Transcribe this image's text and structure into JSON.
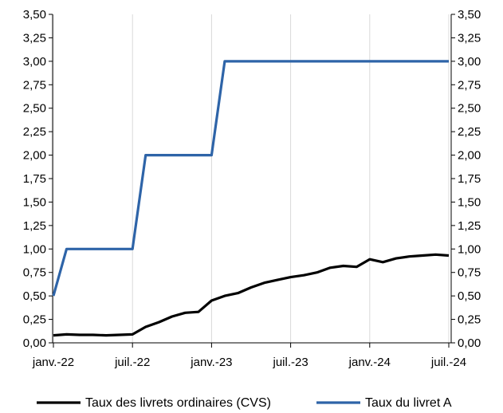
{
  "chart_data": {
    "type": "line",
    "title": "",
    "xlabel": "",
    "ylabel": "",
    "ylim": [
      0,
      3.5
    ],
    "y_ticks": [
      "0,00",
      "0,25",
      "0,50",
      "0,75",
      "1,00",
      "1,25",
      "1,50",
      "1,75",
      "2,00",
      "2,25",
      "2,50",
      "2,75",
      "3,00",
      "3,25",
      "3,50"
    ],
    "x_ticks": [
      "janv.-22",
      "juil.-22",
      "janv.-23",
      "juil.-23",
      "janv.-24",
      "juil.-24"
    ],
    "secondary_y_axis": true,
    "grid": "vertical",
    "legend_position": "bottom",
    "x": [
      "2022-01",
      "2022-02",
      "2022-03",
      "2022-04",
      "2022-05",
      "2022-06",
      "2022-07",
      "2022-08",
      "2022-09",
      "2022-10",
      "2022-11",
      "2022-12",
      "2023-01",
      "2023-02",
      "2023-03",
      "2023-04",
      "2023-05",
      "2023-06",
      "2023-07",
      "2023-08",
      "2023-09",
      "2023-10",
      "2023-11",
      "2023-12",
      "2024-01",
      "2024-02",
      "2024-03",
      "2024-04",
      "2024-05",
      "2024-06",
      "2024-07"
    ],
    "series": [
      {
        "name": "Taux des livrets ordinaires (CVS)",
        "color": "#000000",
        "values": [
          0.08,
          0.09,
          0.085,
          0.085,
          0.08,
          0.085,
          0.09,
          0.17,
          0.22,
          0.28,
          0.32,
          0.33,
          0.45,
          0.5,
          0.53,
          0.59,
          0.64,
          0.67,
          0.7,
          0.72,
          0.75,
          0.8,
          0.82,
          0.81,
          0.89,
          0.86,
          0.9,
          0.92,
          0.93,
          0.94,
          0.93
        ]
      },
      {
        "name": "Taux du livret A",
        "color": "#2e64a8",
        "values": [
          0.5,
          1.0,
          1.0,
          1.0,
          1.0,
          1.0,
          1.0,
          2.0,
          2.0,
          2.0,
          2.0,
          2.0,
          2.0,
          3.0,
          3.0,
          3.0,
          3.0,
          3.0,
          3.0,
          3.0,
          3.0,
          3.0,
          3.0,
          3.0,
          3.0,
          3.0,
          3.0,
          3.0,
          3.0,
          3.0,
          3.0
        ]
      }
    ]
  }
}
